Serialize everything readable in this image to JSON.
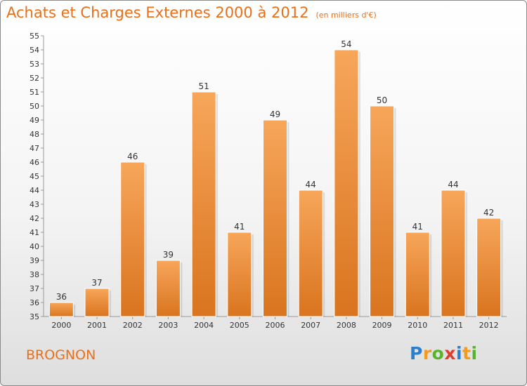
{
  "title": "Achats et Charges Externes 2000 à 2012",
  "unit_note": "(en milliers d'€)",
  "town": "BROGNON",
  "logo": {
    "letters": [
      "P",
      "r",
      "o",
      "x",
      "i",
      "t",
      "i"
    ],
    "colors": [
      "#2a7fd0",
      "#f39a1f",
      "#57b52a",
      "#e23b2e",
      "#2a7fd0",
      "#f39a1f",
      "#57b52a"
    ]
  },
  "colors": {
    "accent": "#e8701a",
    "bar_light": "#f7a65a",
    "bar_dark": "#d9741f"
  },
  "chart_data": {
    "type": "bar",
    "categories": [
      "2000",
      "2001",
      "2002",
      "2003",
      "2004",
      "2005",
      "2006",
      "2007",
      "2008",
      "2009",
      "2010",
      "2011",
      "2012"
    ],
    "values": [
      36,
      37,
      46,
      39,
      51,
      41,
      49,
      44,
      54,
      50,
      41,
      44,
      42
    ],
    "ylim": [
      35,
      55
    ],
    "yticks": [
      35,
      36,
      37,
      38,
      39,
      40,
      41,
      42,
      43,
      44,
      45,
      46,
      47,
      48,
      49,
      50,
      51,
      52,
      53,
      54,
      55
    ],
    "grid": false,
    "data_labels": true
  }
}
